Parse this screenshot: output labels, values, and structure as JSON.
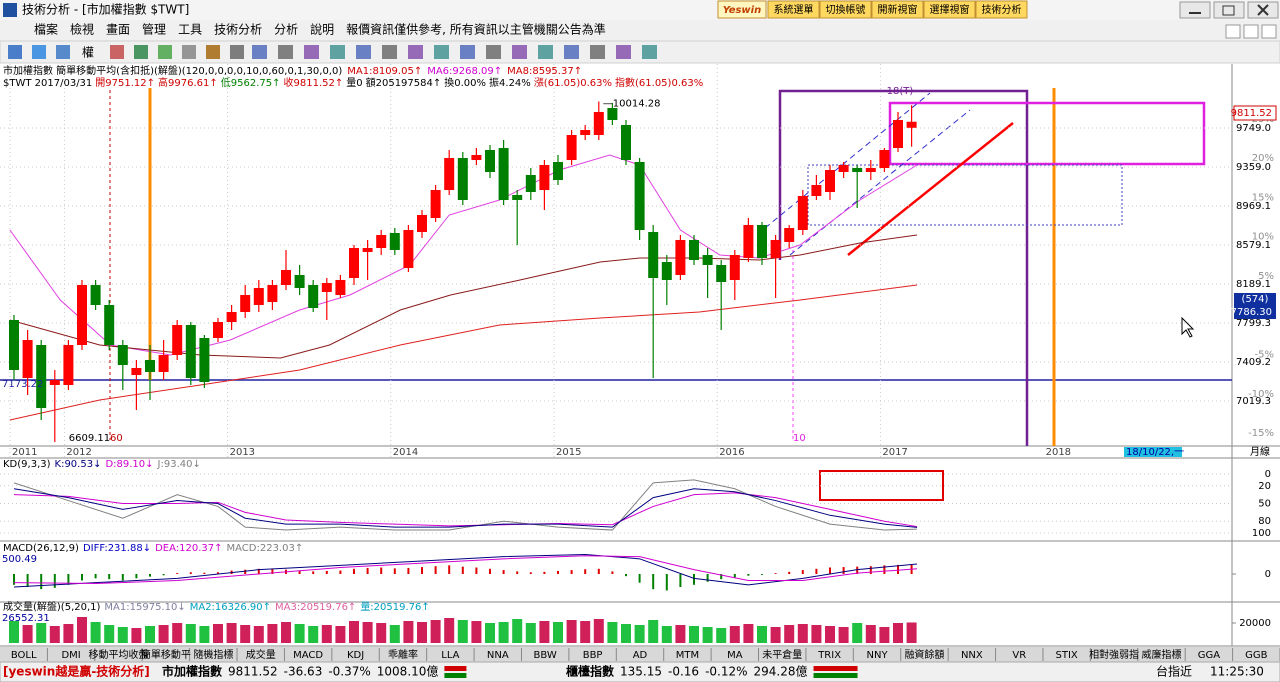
{
  "window": {
    "title": "技術分析 - [市加權指數 $TWT]",
    "logo": "Yeswin",
    "buttons": [
      "系統選單",
      "切換帳號",
      "開新視窗",
      "選擇視窗",
      "技術分析"
    ]
  },
  "menu": [
    "檔案",
    "檢視",
    "畫面",
    "管理",
    "工具",
    "技術分析",
    "分析",
    "說明",
    "報價資訊僅供參考, 所有資訊以主管機關公告為準"
  ],
  "toolbar": {
    "label": "權"
  },
  "chart_data": [
    {
      "type": "candlestick",
      "header": [
        {
          "text": "市加權指數 簡單移動平均(含扣抵)(解盤)(120,0,0,0,0,10,0,60,0,1,30,0,0)",
          "color": "#000000"
        },
        {
          "text": "MA1:8109.05↑",
          "color": "#d00000"
        },
        {
          "text": "MA6:9268.09↑",
          "color": "#d000d0"
        },
        {
          "text": "MA8:8595.37↑",
          "color": "#d00000"
        }
      ],
      "subheader": [
        {
          "text": "$TWT 2017/03/31",
          "color": "#000000"
        },
        {
          "text": "開9751.12↑",
          "color": "#d00000"
        },
        {
          "text": "高9976.61↑",
          "color": "#d00000"
        },
        {
          "text": "低9562.75↑",
          "color": "#008000"
        },
        {
          "text": "收9811.52↑",
          "color": "#d00000"
        },
        {
          "text": "量0",
          "color": "#000000"
        },
        {
          "text": "額205197584↑",
          "color": "#000000"
        },
        {
          "text": "換0.00%",
          "color": "#000000"
        },
        {
          "text": "振4.24%",
          "color": "#000000"
        },
        {
          "text": "漲(61.05)0.63%",
          "color": "#d00000"
        },
        {
          "text": "指數(61.05)0.63%",
          "color": "#d00000"
        }
      ],
      "categories": [
        "2011",
        null,
        null,
        null,
        "2012",
        null,
        null,
        null,
        null,
        null,
        null,
        null,
        null,
        null,
        null,
        null,
        "2013",
        null,
        null,
        null,
        null,
        null,
        null,
        null,
        null,
        null,
        null,
        null,
        "2014",
        null,
        null,
        null,
        null,
        null,
        null,
        null,
        null,
        null,
        null,
        null,
        "2015",
        null,
        null,
        null,
        null,
        null,
        null,
        null,
        null,
        null,
        null,
        null,
        "2016",
        null,
        null,
        null,
        null,
        null,
        null,
        null,
        null,
        null,
        null,
        null,
        "2017",
        null,
        null
      ],
      "future_label": "2018",
      "up_color": "#ff0000",
      "down_color": "#008000",
      "open": [
        7829,
        7249,
        7579,
        7179,
        7179,
        7579,
        8179,
        7979,
        7579,
        7279,
        7429,
        7309,
        7479,
        7779,
        7649,
        7649,
        7809,
        7909,
        7979,
        8009,
        8179,
        8279,
        8179,
        8109,
        8079,
        8249,
        8509,
        8549,
        8699,
        8349,
        8709,
        8849,
        9129,
        9449,
        9429,
        9529,
        9549,
        9079,
        9279,
        9129,
        9409,
        9429,
        9679,
        9679,
        9949,
        9779,
        9409,
        8709,
        8409,
        8279,
        8629,
        8479,
        8379,
        8229,
        8449,
        8779,
        8449,
        8609,
        8729,
        9069,
        9109,
        9309,
        9349,
        9309,
        9349,
        9549,
        9751.12
      ],
      "high": [
        7879,
        7729,
        7629,
        7329,
        7629,
        8229,
        8229,
        8029,
        7629,
        7429,
        7579,
        7629,
        7829,
        7809,
        7679,
        7849,
        7979,
        8179,
        8229,
        8229,
        8529,
        8379,
        8229,
        8249,
        8279,
        8579,
        8629,
        8729,
        8749,
        8779,
        8929,
        9179,
        9529,
        9509,
        9549,
        9579,
        9629,
        9129,
        9349,
        9429,
        9479,
        9729,
        9779,
        10014.28,
        10000,
        9829,
        9449,
        8779,
        8479,
        8679,
        8679,
        8549,
        8429,
        8529,
        8849,
        8809,
        8679,
        8779,
        9129,
        9279,
        9379,
        9409,
        9379,
        9429,
        9549,
        9909,
        9976.61
      ],
      "low": [
        7229,
        7079,
        6829,
        6609.11,
        7129,
        7529,
        7929,
        7529,
        7129,
        6929,
        7029,
        7229,
        7429,
        7179,
        7149,
        7609,
        7729,
        7849,
        7909,
        7929,
        8129,
        8079,
        7909,
        7829,
        8049,
        8179,
        8229,
        8479,
        8479,
        8309,
        8649,
        8809,
        9079,
        8979,
        9379,
        9249,
        8979,
        8579,
        9029,
        8929,
        9179,
        9379,
        9629,
        9629,
        9779,
        9379,
        8629,
        7249,
        7979,
        8229,
        8379,
        8049,
        7729,
        8029,
        8409,
        8379,
        8049,
        8549,
        8679,
        9029,
        9029,
        9249,
        8949,
        9229,
        9309,
        9509,
        9562.75
      ],
      "close": [
        7329,
        7629,
        6949,
        7229,
        7579,
        8179,
        7979,
        7579,
        7379,
        7349,
        7309,
        7479,
        7779,
        7249,
        7209,
        7809,
        7909,
        8079,
        8149,
        8179,
        8329,
        8149,
        7949,
        8199,
        8229,
        8549,
        8549,
        8679,
        8529,
        8729,
        8879,
        9129,
        9449,
        9029,
        9479,
        9309,
        9029,
        9029,
        9109,
        9379,
        9229,
        9679,
        9729,
        9909,
        9829,
        9429,
        8729,
        8249,
        8229,
        8629,
        8429,
        8379,
        8209,
        8479,
        8779,
        8449,
        8629,
        8749,
        9069,
        9179,
        9329,
        9379,
        9309,
        9349,
        9529,
        9829,
        9811.52
      ],
      "overlays": [
        {
          "color": "#e040e0",
          "x": [
            -0.3,
            3.4,
            7.1,
            11.5,
            15.9,
            21,
            24.7,
            29.1,
            32,
            35.7,
            40.1,
            43.8,
            46,
            49,
            51.9,
            54.8,
            57.8,
            62.2,
            66.4
          ],
          "values": [
            8729,
            8029,
            7579,
            7479,
            7629,
            7929,
            8079,
            8379,
            8879,
            9029,
            9329,
            9479,
            9379,
            8729,
            8479,
            8449,
            8579,
            9029,
            9379
          ]
        },
        {
          "color": "#8b1a1a",
          "x": [
            -0.3,
            6.3,
            13.7,
            19.6,
            23.2,
            28.4,
            32.1,
            37.2,
            43.1,
            46,
            50.4,
            54.8,
            57.8,
            62.2,
            66.4
          ],
          "values": [
            7829,
            7579,
            7479,
            7449,
            7579,
            7929,
            8079,
            8229,
            8409,
            8449,
            8449,
            8429,
            8479,
            8599,
            8679
          ]
        },
        {
          "color": "#e02020",
          "x": [
            -0.3,
            6.3,
            13.7,
            21,
            28.4,
            35.7,
            43.1,
            50.4,
            57.8,
            66.4
          ],
          "values": [
            6829,
            7029,
            7179,
            7329,
            7579,
            7779,
            7849,
            7909,
            8029,
            8179
          ]
        }
      ],
      "ylim": [
        6579,
        10179
      ],
      "yticks": [
        7019.3,
        7409.2,
        {
          "value": 7799.3,
          "label": "7799.3"
        },
        8189.1,
        8579.1,
        8969.1,
        {
          "value": 9359,
          "label": "9359.0"
        },
        {
          "value": 9749,
          "label": "9749.0"
        }
      ],
      "y2lim": [
        -16.5,
        29.3
      ],
      "y2ticks": [
        {
          "value": 25,
          "label": "25%"
        },
        {
          "value": 20,
          "label": "20%"
        },
        {
          "value": 15,
          "label": "15%"
        },
        {
          "value": 10,
          "label": "10%"
        },
        {
          "value": 5,
          "label": "5%"
        },
        {
          "value": -5,
          "label": "-5%"
        },
        {
          "value": -10,
          "label": "-10%"
        },
        {
          "value": -15,
          "label": "-15%"
        }
      ],
      "annotations": {
        "high": "—10014.28",
        "low": "6609.11",
        "left_mark": "60",
        "right_mark": "10",
        "box": "18(T)",
        "left_line": "7173.22",
        "last_price": "9811.52",
        "cursor_count": "(574)",
        "cursor_price": "7786.30",
        "date_box": "18/10/22,一",
        "period": "月線"
      },
      "grid": true
    },
    {
      "type": "line",
      "title": "KD(9,3,3)",
      "legend": [
        {
          "text": "K:90.53↓",
          "color": "#000080"
        },
        {
          "text": "D:89.10↓",
          "color": "#d000d0"
        },
        {
          "text": "J:93.40↓",
          "color": "#808080"
        }
      ],
      "series": [
        {
          "color": "#808080",
          "x": [
            0,
            4,
            8,
            12,
            15,
            17,
            20,
            24,
            28,
            32,
            36,
            40,
            44,
            47,
            50,
            53,
            56,
            60,
            64,
            66.4
          ],
          "values": [
            15,
            45,
            75,
            35,
            55,
            90,
            95,
            90,
            95,
            95,
            80,
            90,
            95,
            15,
            10,
            25,
            55,
            85,
            95,
            93.4
          ]
        },
        {
          "color": "#d000d0",
          "x": [
            0,
            4,
            8,
            12,
            15,
            17,
            20,
            24,
            28,
            32,
            36,
            40,
            44,
            47,
            50,
            53,
            56,
            60,
            64,
            66.4
          ],
          "values": [
            35,
            38,
            50,
            50,
            48,
            65,
            78,
            82,
            85,
            88,
            86,
            84,
            86,
            55,
            35,
            32,
            40,
            60,
            80,
            89.1
          ]
        },
        {
          "color": "#000080",
          "x": [
            0,
            4,
            8,
            12,
            15,
            17,
            20,
            24,
            28,
            32,
            36,
            40,
            44,
            47,
            50,
            53,
            56,
            60,
            64,
            66.4
          ],
          "values": [
            25,
            40,
            60,
            45,
            50,
            75,
            85,
            85,
            90,
            90,
            85,
            85,
            90,
            40,
            25,
            30,
            45,
            70,
            85,
            90.53
          ]
        }
      ],
      "ylim": [
        0,
        100
      ],
      "yticks": [
        0,
        20,
        50,
        80,
        100
      ],
      "grid": true
    },
    {
      "type": "macd",
      "title": "MACD(26,12,9)",
      "scale_label": "500.49",
      "legend": [
        {
          "text": "DIFF:231.88↓",
          "color": "#0000c0"
        },
        {
          "text": "DEA:120.37↑",
          "color": "#d000d0"
        },
        {
          "text": "MACD:223.03↑",
          "color": "#808080"
        }
      ],
      "series": [
        {
          "color": "#000080",
          "x": [
            0,
            6,
            12,
            18,
            24,
            30,
            36,
            42,
            46,
            50,
            54,
            58,
            62,
            66.4
          ],
          "values": [
            -300,
            -200,
            -100,
            100,
            200,
            300,
            400,
            450,
            350,
            -100,
            -250,
            -100,
            100,
            231.88
          ]
        },
        {
          "color": "#d000d0",
          "x": [
            0,
            6,
            12,
            18,
            24,
            30,
            36,
            42,
            46,
            50,
            54,
            58,
            62,
            66.4
          ],
          "values": [
            -200,
            -220,
            -150,
            0,
            150,
            250,
            350,
            420,
            400,
            100,
            -150,
            -150,
            20,
            120.37
          ]
        }
      ],
      "values": [
        -250,
        -300,
        -350,
        -320,
        -250,
        -150,
        -100,
        -120,
        -150,
        -100,
        -60,
        -30,
        20,
        40,
        30,
        40,
        80,
        100,
        120,
        110,
        100,
        80,
        60,
        70,
        80,
        120,
        140,
        150,
        130,
        140,
        160,
        180,
        200,
        170,
        150,
        120,
        90,
        60,
        40,
        50,
        70,
        90,
        110,
        120,
        60,
        -50,
        -200,
        -350,
        -380,
        -300,
        -250,
        -180,
        -120,
        -80,
        -40,
        -20,
        20,
        50,
        90,
        120,
        150,
        160,
        170,
        180,
        200,
        210,
        223.03
      ],
      "up_color": "#e00000",
      "down_color": "#008000",
      "ylim": [
        -600,
        600
      ],
      "yticks": [
        0
      ]
    },
    {
      "type": "bar",
      "title": "成交量(解盤)(5,20,1)",
      "scale_label": "26552.31",
      "legend": [
        {
          "text": "MA1:15975.10↓",
          "color": "#8080a0"
        },
        {
          "text": "MA2:16326.90↑",
          "color": "#00a0c0"
        },
        {
          "text": "MA3:20519.76↑",
          "color": "#e060a0"
        },
        {
          "text": "量:20519.76↑",
          "color": "#00a0c0"
        }
      ],
      "values": [
        22000,
        18000,
        20000,
        17000,
        19000,
        26000,
        21000,
        18000,
        16000,
        15000,
        17000,
        18000,
        20000,
        19000,
        17000,
        19000,
        20000,
        18000,
        17000,
        19000,
        21000,
        19000,
        17000,
        18000,
        17000,
        22000,
        21000,
        20000,
        18000,
        22000,
        21000,
        23000,
        25000,
        23000,
        22000,
        20000,
        21000,
        24000,
        20000,
        22000,
        21000,
        23000,
        22000,
        24000,
        21000,
        19000,
        18000,
        23000,
        17000,
        18000,
        17000,
        16000,
        15000,
        17000,
        19000,
        17000,
        16000,
        18000,
        19000,
        18000,
        17000,
        16000,
        20000,
        18000,
        16000,
        20000,
        20519.76
      ],
      "up_color": "#d0205a",
      "down_color": "#20c040",
      "ylim": [
        0,
        38000
      ],
      "yticks": [
        20000
      ]
    }
  ],
  "tabs": [
    "BOLL",
    "DMI",
    "移動平均收盤",
    "簡單移動平",
    "隨機指標",
    "成交量",
    "MACD",
    "KDJ",
    "乖離率",
    "LLA",
    "NNA",
    "BBW",
    "BBP",
    "AD",
    "MTM",
    "MA",
    "未平倉量",
    "TRIX",
    "NNY",
    "融資餘額",
    "NNX",
    "VR",
    "STIX",
    "相對強弱指",
    "威廉指標",
    "GGA",
    "GGB"
  ],
  "status": {
    "brand": "[yeswin越是贏-技術分析]",
    "index1": {
      "name": "市加權指數",
      "price": "9811.52",
      "change": "-36.63",
      "pct": "-0.37%",
      "amount": "1008.10億"
    },
    "index2": {
      "name": "櫃檯指數",
      "price": "135.15",
      "change": "-0.16",
      "pct": "-0.12%",
      "amount": "294.28億"
    },
    "futures": "台指近",
    "time": "11:25:30"
  }
}
